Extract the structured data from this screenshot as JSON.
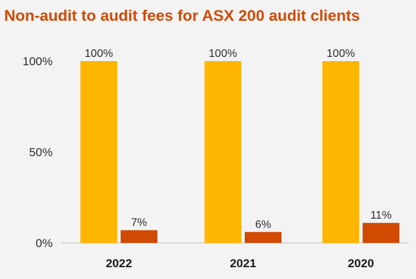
{
  "chart_data": {
    "type": "bar",
    "title": "Non-audit to audit fees for ASX 200 audit clients",
    "xlabel": "",
    "ylabel": "",
    "categories": [
      "2022",
      "2021",
      "2020"
    ],
    "ylim": [
      0,
      100
    ],
    "yticks": [
      "0%",
      "50%",
      "100%"
    ],
    "series": [
      {
        "values": [
          100,
          100,
          100
        ],
        "labels": [
          "100%",
          "100%",
          "100%"
        ],
        "color": "#ffb600"
      },
      {
        "values": [
          7,
          6,
          11
        ],
        "labels": [
          "7%",
          "6%",
          "11%"
        ],
        "color": "#d04a02"
      }
    ],
    "grid": false,
    "legend": "none"
  }
}
